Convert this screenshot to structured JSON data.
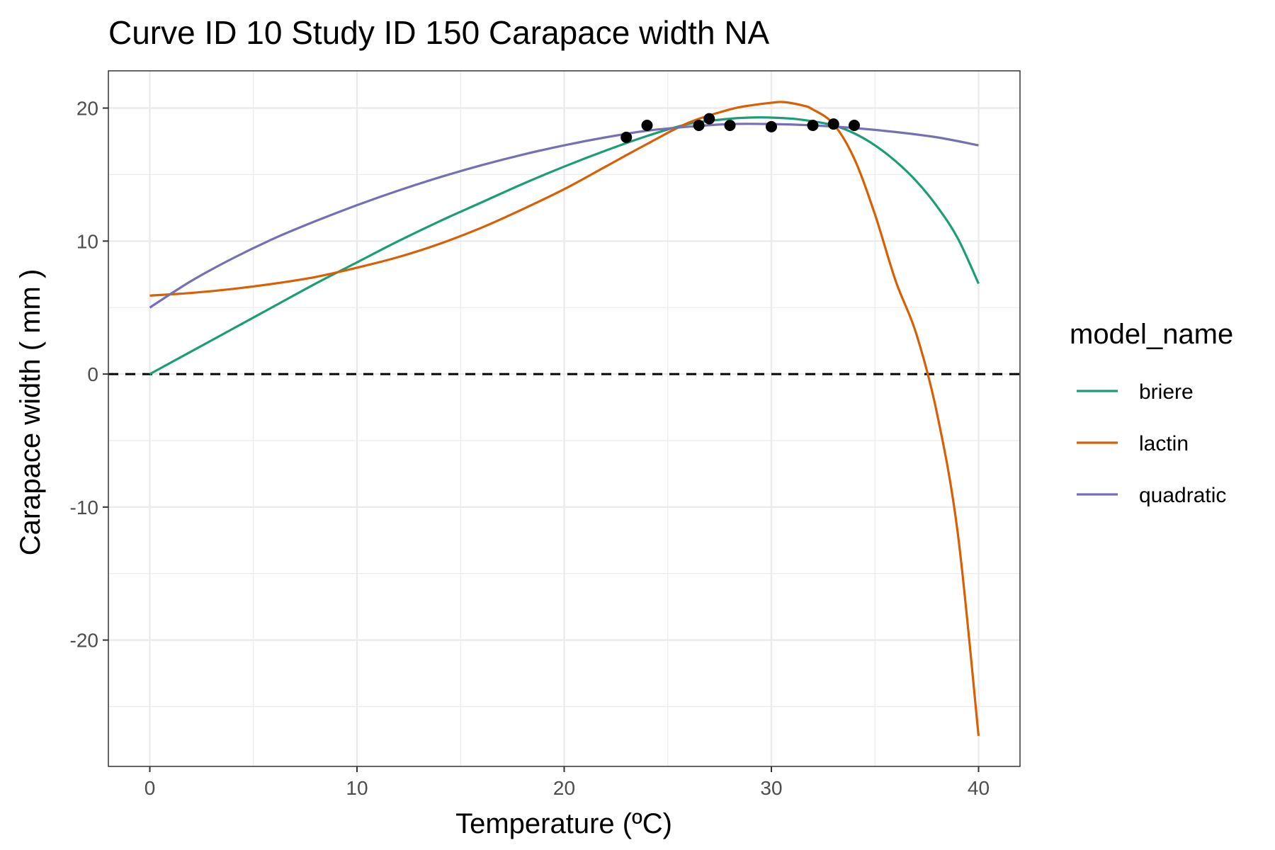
{
  "chart_data": {
    "type": "line",
    "title": "Curve ID 10 Study ID 150 Carapace width NA",
    "xlabel": "Temperature (ºC)",
    "ylabel": "Carapace width ( mm )",
    "xlim": [
      -2,
      42
    ],
    "ylim": [
      -29.5,
      22.8
    ],
    "x_ticks": [
      0,
      10,
      20,
      30,
      40
    ],
    "y_ticks": [
      -20,
      -10,
      0,
      10,
      20
    ],
    "x_tick_labels": [
      "0",
      "10",
      "20",
      "30",
      "40"
    ],
    "y_tick_labels": [
      "-20",
      "-10",
      "0",
      "10",
      "20"
    ],
    "grid": true,
    "reference_line": {
      "y": 0,
      "style": "dashed",
      "color": "#000000"
    },
    "legend": {
      "title": "model_name",
      "position": "right"
    },
    "series": [
      {
        "name": "briere",
        "color": "#1B9E77",
        "x": [
          0,
          2,
          4,
          6,
          8,
          10,
          12,
          14,
          16,
          18,
          20,
          22,
          24,
          26,
          28,
          29.5,
          31,
          32,
          33,
          34,
          35,
          36,
          37,
          38,
          39,
          40
        ],
        "y": [
          0,
          1.7,
          3.4,
          5.1,
          6.8,
          8.4,
          10.0,
          11.5,
          12.9,
          14.3,
          15.6,
          16.8,
          17.9,
          18.8,
          19.2,
          19.3,
          19.2,
          19.0,
          18.7,
          18.1,
          17.2,
          16.0,
          14.5,
          12.6,
          10.2,
          6.8
        ]
      },
      {
        "name": "lactin",
        "color": "#D95F02",
        "x": [
          0,
          2,
          4,
          6,
          8,
          10,
          12,
          14,
          16,
          18,
          20,
          22,
          24,
          26,
          28,
          29,
          30,
          30.6,
          31.5,
          32,
          33,
          34,
          35,
          36,
          37,
          38,
          39,
          40
        ],
        "y": [
          5.9,
          6.1,
          6.4,
          6.8,
          7.3,
          8.0,
          8.8,
          9.8,
          11.0,
          12.4,
          13.9,
          15.6,
          17.3,
          18.9,
          19.9,
          20.2,
          20.4,
          20.45,
          20.2,
          19.9,
          18.8,
          16.2,
          12.0,
          7.0,
          3.0,
          -3.0,
          -12.0,
          -27.2
        ]
      },
      {
        "name": "quadratic",
        "color": "#7570B3",
        "x": [
          0,
          2,
          4,
          6,
          8,
          10,
          12,
          14,
          16,
          18,
          20,
          22,
          24,
          26,
          28,
          30,
          32,
          34,
          36,
          38,
          40
        ],
        "y": [
          5.0,
          7.0,
          8.7,
          10.2,
          11.5,
          12.7,
          13.8,
          14.8,
          15.7,
          16.5,
          17.2,
          17.8,
          18.3,
          18.6,
          18.8,
          18.8,
          18.7,
          18.5,
          18.2,
          17.8,
          17.2
        ]
      }
    ],
    "points": {
      "color": "#000000",
      "x": [
        23,
        24,
        26.5,
        27,
        28,
        30,
        32,
        33,
        34
      ],
      "y": [
        17.8,
        18.7,
        18.7,
        19.2,
        18.7,
        18.6,
        18.7,
        18.8,
        18.7
      ]
    }
  }
}
